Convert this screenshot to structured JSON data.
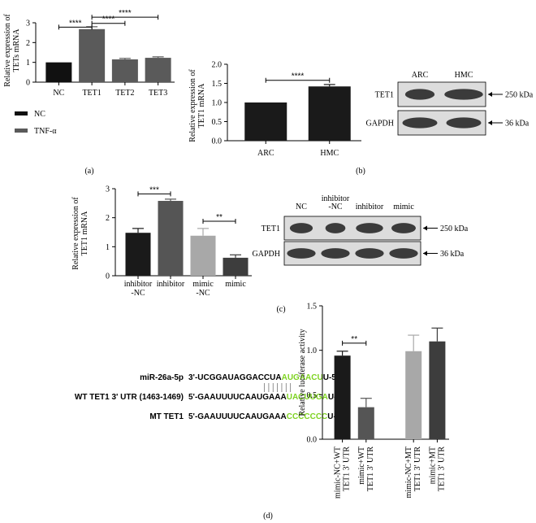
{
  "colors": {
    "nc": "#111111",
    "tnf": "#5a5a5a",
    "black": "#1a1a1a",
    "dark_gray": "#555555",
    "light_gray": "#a8a8a8",
    "dark2": "#3d3d3d",
    "green": "#7ed321"
  },
  "legend_a": {
    "nc": "NC",
    "tnf": "TNF-α"
  },
  "chart_data": [
    {
      "id": "a",
      "type": "bar",
      "panel_label": "(a)",
      "ylabel_lines": [
        "Relative expression of",
        "TETs mRNA"
      ],
      "xlabel": "",
      "categories": [
        "NC",
        "TET1",
        "TET2",
        "TET3"
      ],
      "series": [
        {
          "name": "",
          "values": [
            1.0,
            2.68,
            1.15,
            1.23
          ],
          "errors": [
            0,
            0.12,
            0.05,
            0.05
          ]
        }
      ],
      "ylim": [
        0,
        3
      ],
      "yticks": [
        0,
        1,
        2,
        3
      ],
      "bar_color_keys": [
        "nc",
        "tnf",
        "tnf",
        "tnf"
      ],
      "significance": [
        {
          "from": 0,
          "to": 1,
          "text": "****",
          "level": 2.78
        },
        {
          "from": 1,
          "to": 2,
          "text": "****",
          "level": 2.97
        },
        {
          "from": 1,
          "to": 3,
          "text": "****",
          "level": 3.28
        }
      ],
      "grid": false
    },
    {
      "id": "b",
      "type": "bar",
      "panel_label": "(b)",
      "ylabel_lines": [
        "Relative expression of",
        "TET1 mRNA"
      ],
      "xlabel": "",
      "categories": [
        "ARC",
        "HMC"
      ],
      "series": [
        {
          "name": "",
          "values": [
            1.0,
            1.42
          ],
          "errors": [
            0,
            0.05
          ]
        }
      ],
      "ylim": [
        0,
        2.0
      ],
      "yticks": [
        0.0,
        0.5,
        1.0,
        1.5,
        2.0
      ],
      "ytick_labels": [
        "0.0",
        "0.5",
        "1.0",
        "1.5",
        "2.0"
      ],
      "bar_color_keys": [
        "black",
        "black"
      ],
      "significance": [
        {
          "from": 0,
          "to": 1,
          "text": "****",
          "level": 1.58
        }
      ],
      "grid": false
    },
    {
      "id": "c",
      "type": "bar",
      "panel_label": "(c)",
      "ylabel_lines": [
        "Relative expression of",
        "TET1 mRNA"
      ],
      "xlabel": "",
      "categories": [
        "inhibitor\n-NC",
        "inhibitor",
        "mimic\n-NC",
        "mimic"
      ],
      "series": [
        {
          "name": "",
          "values": [
            1.48,
            2.58,
            1.38,
            0.62
          ],
          "errors": [
            0.15,
            0.06,
            0.25,
            0.1
          ]
        }
      ],
      "ylim": [
        0,
        3
      ],
      "yticks": [
        0,
        1,
        2,
        3
      ],
      "bar_color_keys": [
        "black",
        "dark_gray",
        "light_gray",
        "dark2"
      ],
      "significance": [
        {
          "from": 0,
          "to": 1,
          "text": "***",
          "level": 2.82
        },
        {
          "from": 2,
          "to": 3,
          "text": "**",
          "level": 1.88
        }
      ],
      "grid": false
    },
    {
      "id": "d",
      "type": "bar",
      "panel_label": "(d)",
      "ylabel_lines": [
        "Relative luciferase activity"
      ],
      "xlabel": "",
      "categories": [
        "mimic-NC+WT\nTET1 3' UTR",
        "mimic+WT\nTET1 3' UTR",
        "mimic-NC+MT\nTET1 3' UTR",
        "mimic+MT\nTET1 3' UTR"
      ],
      "series": [
        {
          "name": "",
          "values": [
            0.94,
            0.36,
            0.99,
            1.1
          ],
          "errors": [
            0.05,
            0.1,
            0.18,
            0.15
          ]
        }
      ],
      "ylim": [
        0,
        1.5
      ],
      "yticks": [
        0.0,
        0.5,
        1.0,
        1.5
      ],
      "ytick_labels": [
        "0.0",
        "0.5",
        "1.0",
        "1.5"
      ],
      "bar_color_keys": [
        "black",
        "dark_gray",
        "light_gray",
        "dark2"
      ],
      "significance": [
        {
          "from": 0,
          "to": 1,
          "text": "**",
          "level": 1.08
        }
      ],
      "grid": false
    }
  ],
  "blot_b": {
    "lanes": [
      "ARC",
      "HMC"
    ],
    "rows": [
      {
        "protein": "TET1",
        "size": "250 kDa"
      },
      {
        "protein": "GAPDH",
        "size": "36 kDa"
      }
    ]
  },
  "blot_c": {
    "lanes": [
      "NC",
      "inhibitor\n-NC",
      "inhibitor",
      "mimic"
    ],
    "rows": [
      {
        "protein": "TET1",
        "size": "250 kDa"
      },
      {
        "protein": "GAPDH",
        "size": "36 kDa"
      }
    ]
  },
  "sequence_d": {
    "rows": [
      {
        "label": "miR-26a-5p",
        "prefix": "3'-UCGGAUAGGACCUA",
        "highlight": "AUGAACU",
        "suffix": "U-5'"
      },
      {
        "label": "WT TET1 3' UTR (1463-1469)",
        "prefix": "5'-GAAUUUUCAAUGAAA",
        "highlight": "UACUUGA",
        "suffix": "U-3'"
      },
      {
        "label": "MT TET1",
        "prefix": "5'-GAAUUUUCAAUGAAA",
        "highlight": "CCCCCCC",
        "suffix": "U-3'"
      }
    ]
  }
}
